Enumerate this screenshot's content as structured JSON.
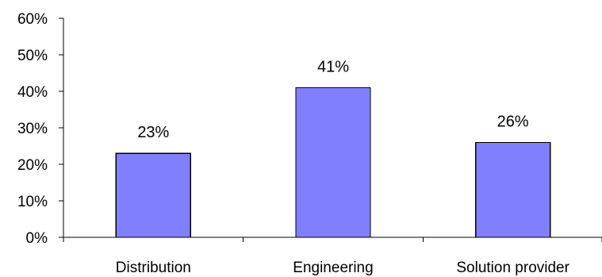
{
  "chart_data": {
    "type": "bar",
    "categories": [
      "Distribution",
      "Engineering",
      "Solution provider"
    ],
    "values": [
      23,
      41,
      26
    ],
    "data_labels": [
      "23%",
      "41%",
      "26%"
    ],
    "ylim": [
      0,
      60
    ],
    "y_ticks": [
      0,
      10,
      20,
      30,
      40,
      50,
      60
    ],
    "y_tick_labels": [
      "0%",
      "10%",
      "20%",
      "30%",
      "40%",
      "50%",
      "60%"
    ],
    "grid": false,
    "legend": "none",
    "bar_color": "#8080FF",
    "title": "",
    "xlabel": "",
    "ylabel": ""
  }
}
